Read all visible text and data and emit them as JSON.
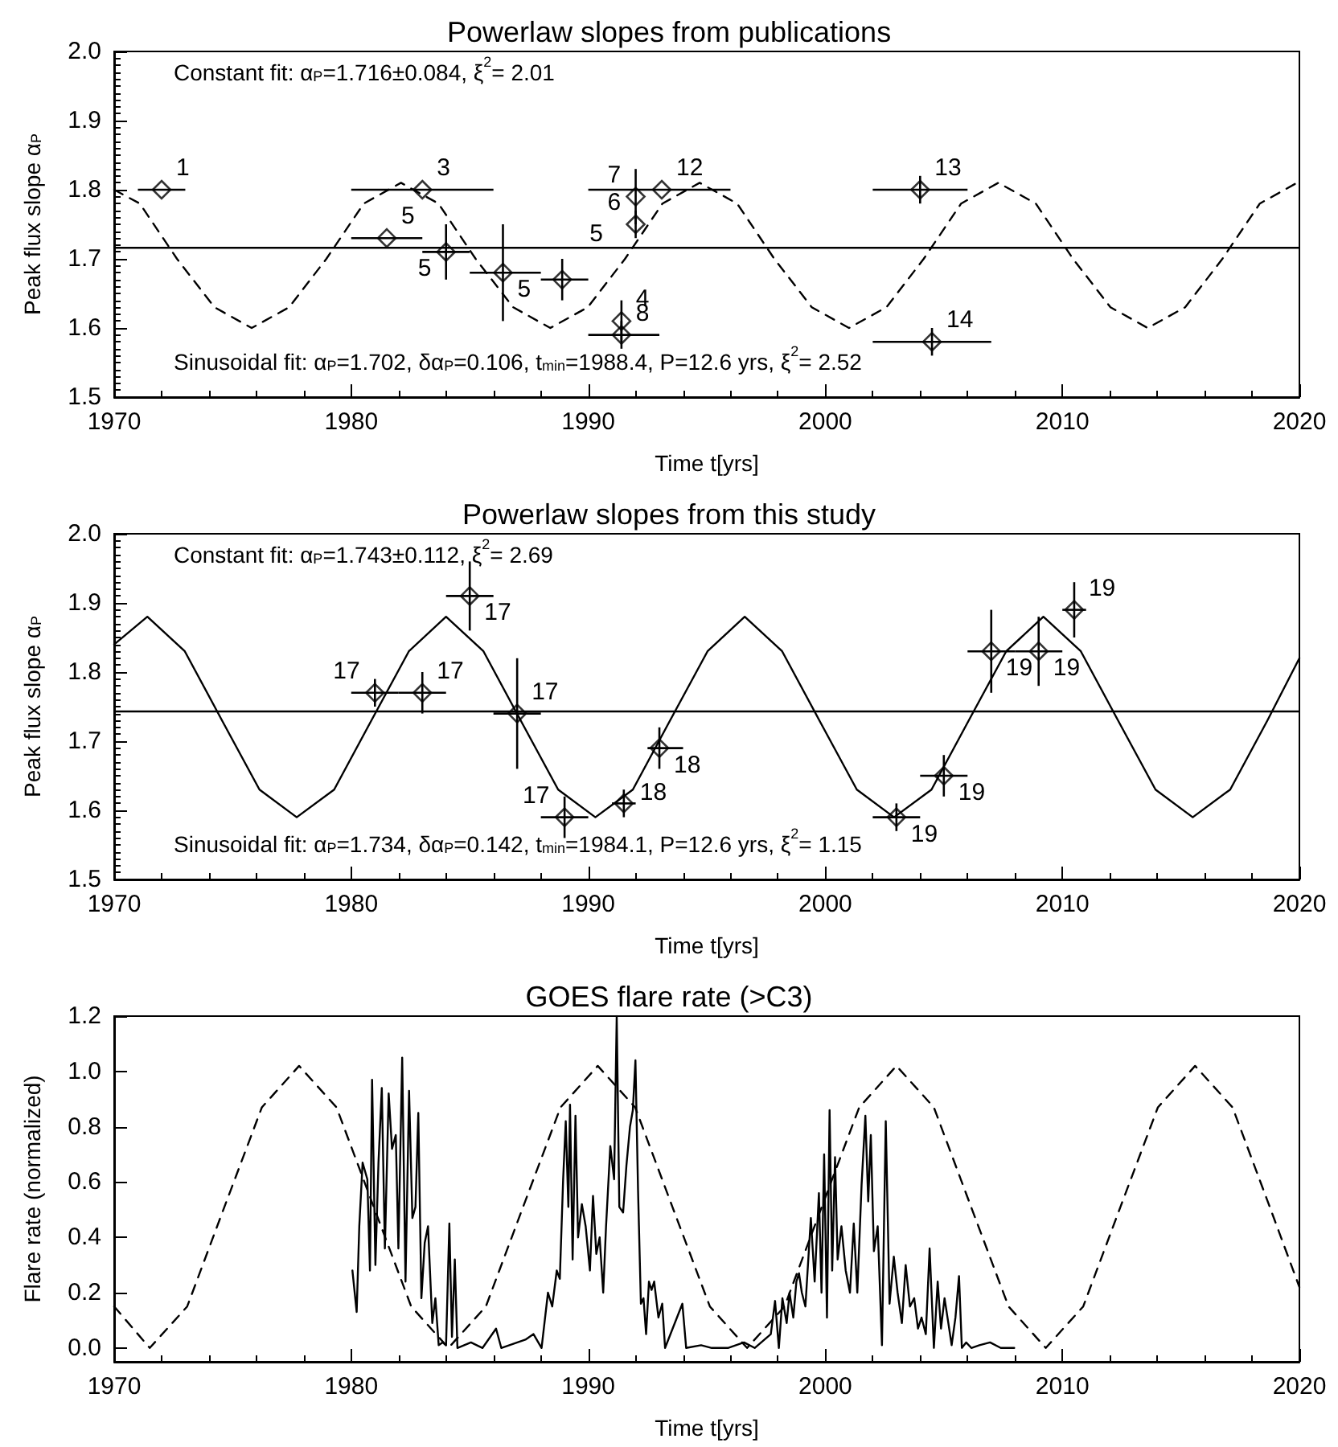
{
  "chart_data": [
    {
      "type": "scatter",
      "title": "Powerlaw slopes from publications",
      "xlabel": "Time t[yrs]",
      "ylabel": "Peak flux slope α$_{P}$",
      "annotations": [
        "Constant fit: α$_{P}$=1.716±0.084, ξ$^{2}$= 2.01",
        "Sinusoidal fit: α$_{P}$=1.702, δα$_{P}$=0.106, t$_{min}$=1988.4, P=12.6 yrs, ξ$^{2}$= 2.52",
        {
          "text": "1",
          "x": 1972.0,
          "y": 1.8
        },
        {
          "text": "3",
          "x": 1983.0,
          "y": 1.8
        },
        {
          "text": "5",
          "x": 1981.5,
          "y": 1.73
        },
        {
          "text": "5",
          "x": 1984.0,
          "y": 1.71
        },
        {
          "text": "5",
          "x": 1986.4,
          "y": 1.68
        },
        {
          "text": "5",
          "x": 1988.9,
          "y": 1.67
        },
        {
          "text": "4",
          "x": 1991.4,
          "y": 1.61
        },
        {
          "text": "8",
          "x": 1991.4,
          "y": 1.59
        },
        {
          "text": "7",
          "x": 1992.0,
          "y": 1.79
        },
        {
          "text": "6",
          "x": 1992.0,
          "y": 1.75
        },
        {
          "text": "12",
          "x": 1993.1,
          "y": 1.8
        },
        {
          "text": "13",
          "x": 2004.0,
          "y": 1.8
        },
        {
          "text": "14",
          "x": 2004.5,
          "y": 1.58
        }
      ],
      "xlim": [
        1970,
        2020
      ],
      "xticks": [
        1970,
        1980,
        1990,
        2000,
        2010,
        2020
      ],
      "ylim": [
        1.5,
        2.0
      ],
      "yticks": [
        1.5,
        1.6,
        1.7,
        1.8,
        1.9,
        {
          "value": 2.0,
          "label": "2.0"
        }
      ],
      "ref_lines": [
        {
          "axis": "y",
          "value": 1.716,
          "color": "#000000",
          "line_style": "solid"
        }
      ],
      "series": [
        {
          "color": "#000000",
          "marker": "diamond",
          "x": [
            1972.0,
            1983.0,
            1981.5,
            1984.0,
            1986.4,
            1988.9,
            1991.4,
            1991.4,
            1992.0,
            1992.0,
            1993.1,
            2004.0,
            2004.5
          ],
          "values": [
            1.8,
            1.8,
            1.73,
            1.71,
            1.68,
            1.67,
            1.61,
            1.59,
            1.79,
            1.75,
            1.8,
            1.8,
            1.58
          ],
          "errors": [
            null,
            null,
            null,
            0.04,
            0.07,
            0.03,
            0.03,
            0.02,
            0.04,
            0.02,
            null,
            0.02,
            0.02
          ],
          "xerrors": [
            1,
            3,
            1.5,
            1,
            [
              1985,
              1988
            ],
            [
              1988,
              1990
            ],
            null,
            [
              1990,
              1993
            ],
            null,
            null,
            [
              1990,
              1996
            ],
            2,
            2.5
          ]
        },
        {
          "type": "line",
          "color": "#000000",
          "line_style": "dashed",
          "x": [
            1970,
            1971.08,
            1972.65,
            1974.23,
            1975.8,
            1977.38,
            1978.95,
            1980.53,
            1982.1,
            1983.68,
            1985.25,
            1986.83,
            1988.4,
            1989.98,
            1991.55,
            1993.13,
            1994.7,
            1996.28,
            1997.85,
            1999.43,
            2001.0,
            2002.58,
            2004.15,
            2005.73,
            2007.3,
            2008.88,
            2010.45,
            2012.03,
            2013.6,
            2015.18,
            2016.75,
            2018.33,
            2019.9,
            2020
          ],
          "values": [
            1.8,
            1.78,
            1.7,
            1.63,
            1.6,
            1.63,
            1.7,
            1.78,
            1.81,
            1.78,
            1.7,
            1.63,
            1.6,
            1.63,
            1.7,
            1.78,
            1.81,
            1.78,
            1.7,
            1.63,
            1.6,
            1.63,
            1.7,
            1.78,
            1.81,
            1.78,
            1.7,
            1.63,
            1.6,
            1.63,
            1.7,
            1.78,
            1.81,
            1.81
          ]
        }
      ]
    },
    {
      "type": "scatter",
      "title": "Powerlaw slopes from this study",
      "xlabel": "Time t[yrs]",
      "ylabel": "Peak flux slope α$_{P}$",
      "annotations": [
        "Constant fit: α$_{P}$=1.743±0.112, ξ$^{2}$= 2.69",
        "Sinusoidal fit: α$_{P}$=1.734, δα$_{P}$=0.142, t$_{min}$=1984.1, P=12.6 yrs, ξ$^{2}$= 1.15",
        {
          "text": "17",
          "x": 1981.0,
          "y": 1.77
        },
        {
          "text": "17",
          "x": 1983.0,
          "y": 1.77
        },
        {
          "text": "17",
          "x": 1985.0,
          "y": 1.91
        },
        {
          "text": "17",
          "x": 1987.0,
          "y": 1.74
        },
        {
          "text": "17",
          "x": 1989.0,
          "y": 1.59
        },
        {
          "text": "18",
          "x": 1991.5,
          "y": 1.61
        },
        {
          "text": "18",
          "x": 1993.0,
          "y": 1.69
        },
        {
          "text": "19",
          "x": 2003.0,
          "y": 1.59
        },
        {
          "text": "19",
          "x": 2005.0,
          "y": 1.65
        },
        {
          "text": "19",
          "x": 2007.0,
          "y": 1.83
        },
        {
          "text": "19",
          "x": 2009.0,
          "y": 1.83
        },
        {
          "text": "19",
          "x": 2010.5,
          "y": 1.89
        }
      ],
      "xlim": [
        1970,
        2020
      ],
      "xticks": [
        1970,
        1980,
        1990,
        2000,
        2010,
        2020
      ],
      "ylim": [
        1.5,
        2.0
      ],
      "yticks": [
        1.5,
        1.6,
        1.7,
        1.8,
        1.9,
        {
          "value": 2.0,
          "label": "2.0"
        }
      ],
      "ref_lines": [
        {
          "axis": "y",
          "value": 1.743,
          "color": "#000000",
          "line_style": "solid"
        }
      ],
      "series": [
        {
          "color": "#000000",
          "marker": "diamond",
          "x": [
            1981.0,
            1983.0,
            1985.0,
            1987.0,
            1989.0,
            1991.5,
            1993.0,
            2003.0,
            2005.0,
            2007.0,
            2009.0,
            2010.5
          ],
          "values": [
            1.77,
            1.77,
            1.91,
            1.74,
            1.59,
            1.61,
            1.69,
            1.59,
            1.65,
            1.83,
            1.83,
            1.89
          ],
          "errors": [
            0.02,
            0.03,
            0.05,
            0.08,
            0.03,
            0.02,
            0.03,
            0.02,
            0.03,
            0.06,
            0.05,
            0.04
          ],
          "xerrors": [
            1,
            1,
            1,
            1,
            1,
            0.5,
            [
              1992.5,
              1994.0
            ],
            1,
            1,
            1,
            1,
            0.5
          ]
        },
        {
          "type": "line",
          "color": "#000000",
          "line_style": "solid",
          "x": [
            1970,
            1971.4,
            1972.98,
            1974.55,
            1976.13,
            1977.7,
            1979.28,
            1980.85,
            1982.43,
            1984.0,
            1985.58,
            1987.15,
            1988.73,
            1990.3,
            1991.88,
            1993.45,
            1995.03,
            1996.6,
            1998.18,
            1999.75,
            2001.33,
            2002.9,
            2004.48,
            2006.05,
            2007.63,
            2009.2,
            2010.78,
            2012.35,
            2013.93,
            2015.5,
            2017.08,
            2018.65,
            2020
          ],
          "values": [
            1.84,
            1.88,
            1.83,
            1.73,
            1.63,
            1.59,
            1.63,
            1.73,
            1.83,
            1.88,
            1.83,
            1.73,
            1.63,
            1.59,
            1.63,
            1.73,
            1.83,
            1.88,
            1.83,
            1.73,
            1.63,
            1.59,
            1.63,
            1.73,
            1.83,
            1.88,
            1.83,
            1.73,
            1.63,
            1.59,
            1.63,
            1.73,
            1.82
          ]
        }
      ]
    },
    {
      "type": "line",
      "title": "GOES flare rate (>C3)",
      "xlabel": "Time t[yrs]",
      "ylabel": "Flare rate (normalized)",
      "xlim": [
        1970,
        2020
      ],
      "xticks": [
        1970,
        1980,
        1990,
        2000,
        2010,
        2020
      ],
      "ylim": [
        -0.05,
        1.2
      ],
      "yticks": [
        {
          "value": 0,
          "label": "0.0"
        },
        0.2,
        0.4,
        0.6,
        0.8,
        {
          "value": 1.0,
          "label": "1.0"
        },
        1.2
      ],
      "series": [
        {
          "color": "#000000",
          "line_style": "solid",
          "x": [
            1980.05,
            1980.23,
            1980.34,
            1980.48,
            1980.68,
            1980.79,
            1980.88,
            1981.02,
            1981.15,
            1981.29,
            1981.42,
            1981.58,
            1981.72,
            1981.88,
            1981.99,
            1982.15,
            1982.29,
            1982.44,
            1982.58,
            1982.71,
            1982.83,
            1982.96,
            1983.1,
            1983.24,
            1983.42,
            1983.55,
            1983.69,
            1983.85,
            1984.0,
            1984.14,
            1984.25,
            1984.37,
            1984.48,
            1985.05,
            1985.54,
            1986.11,
            1986.33,
            1987.35,
            1987.69,
            1988.03,
            1988.3,
            1988.48,
            1988.67,
            1988.8,
            1988.94,
            1989.05,
            1989.16,
            1989.23,
            1989.34,
            1989.46,
            1989.57,
            1989.73,
            1989.89,
            1990.07,
            1990.2,
            1990.34,
            1990.48,
            1990.63,
            1990.75,
            1990.93,
            1991.09,
            1991.2,
            1991.31,
            1991.47,
            1991.61,
            1991.76,
            1991.88,
            1991.99,
            1992.1,
            1992.22,
            1992.33,
            1992.44,
            1992.56,
            1992.67,
            1992.78,
            1992.96,
            1993.12,
            1993.24,
            1993.97,
            1994.13,
            1994.76,
            1995.21,
            1995.89,
            1996.57,
            1997.02,
            1997.7,
            1997.88,
            1998.04,
            1998.19,
            1998.37,
            1998.49,
            1998.65,
            1998.78,
            1998.89,
            1999.01,
            1999.16,
            1999.39,
            1999.55,
            1999.73,
            1999.84,
            1999.95,
            2000.07,
            2000.18,
            2000.29,
            2000.41,
            2000.52,
            2000.68,
            2000.86,
            2001.04,
            2001.2,
            2001.35,
            2001.53,
            2001.69,
            2001.81,
            2001.92,
            2002.05,
            2002.21,
            2002.39,
            2002.55,
            2002.71,
            2002.89,
            2003.05,
            2003.23,
            2003.39,
            2003.57,
            2003.75,
            2003.91,
            2004.06,
            2004.24,
            2004.4,
            2004.58,
            2004.74,
            2004.88,
            2005.03,
            2005.19,
            2005.33,
            2005.49,
            2005.64,
            2005.76,
            2005.94,
            2006.16,
            2006.5,
            2006.95,
            2007.4,
            2007.97
          ],
          "values": [
            0.28,
            0.13,
            0.44,
            0.67,
            0.61,
            0.28,
            0.97,
            0.3,
            0.67,
            0.94,
            0.36,
            0.92,
            0.72,
            0.77,
            0.36,
            1.05,
            0.24,
            0.93,
            0.47,
            0.51,
            0.85,
            0.18,
            0.38,
            0.44,
            0.09,
            0.18,
            0.01,
            0.02,
            0.01,
            0.45,
            0.04,
            0.32,
            0.0,
            0.02,
            0.0,
            0.07,
            0.0,
            0.03,
            0.05,
            0.0,
            0.2,
            0.15,
            0.28,
            0.25,
            0.61,
            0.82,
            0.51,
            0.88,
            0.32,
            0.84,
            0.4,
            0.52,
            0.44,
            0.28,
            0.55,
            0.34,
            0.4,
            0.2,
            0.44,
            0.73,
            0.61,
            1.2,
            0.51,
            0.49,
            0.66,
            0.8,
            0.86,
            1.04,
            0.57,
            0.16,
            0.18,
            0.05,
            0.24,
            0.21,
            0.24,
            0.11,
            0.16,
            0.0,
            0.16,
            0.0,
            0.01,
            0.0,
            0.0,
            0.02,
            0.0,
            0.05,
            0.17,
            0.0,
            0.18,
            0.09,
            0.2,
            0.11,
            0.24,
            0.27,
            0.2,
            0.15,
            0.47,
            0.24,
            0.56,
            0.2,
            0.7,
            0.11,
            0.86,
            0.28,
            0.69,
            0.32,
            0.44,
            0.28,
            0.2,
            0.45,
            0.2,
            0.59,
            0.84,
            0.53,
            0.77,
            0.35,
            0.44,
            0.01,
            0.82,
            0.16,
            0.33,
            0.2,
            0.09,
            0.3,
            0.15,
            0.18,
            0.07,
            0.11,
            0.05,
            0.36,
            0.0,
            0.24,
            0.07,
            0.18,
            0.09,
            0.01,
            0.11,
            0.26,
            0.0,
            0.02,
            0.0,
            0.01,
            0.02,
            0.0,
            0.0
          ]
        },
        {
          "color": "#000000",
          "line_style": "dashed",
          "x": [
            1970,
            1971.5,
            1973.08,
            1974.65,
            1976.23,
            1977.8,
            1979.38,
            1980.95,
            1982.53,
            1984.1,
            1985.68,
            1987.25,
            1988.83,
            1990.4,
            1991.98,
            1993.55,
            1995.13,
            1996.7,
            1998.28,
            1999.85,
            2001.43,
            2003.0,
            2004.58,
            2006.15,
            2007.73,
            2009.3,
            2010.88,
            2012.45,
            2014.03,
            2015.6,
            2017.18,
            2018.75,
            2020
          ],
          "values": [
            0.15,
            0.0,
            0.15,
            0.51,
            0.87,
            1.02,
            0.87,
            0.51,
            0.15,
            0.0,
            0.15,
            0.51,
            0.87,
            1.02,
            0.87,
            0.51,
            0.15,
            0.0,
            0.15,
            0.51,
            0.87,
            1.02,
            0.87,
            0.51,
            0.15,
            0.0,
            0.15,
            0.51,
            0.87,
            1.02,
            0.87,
            0.51,
            0.22
          ]
        }
      ]
    }
  ]
}
